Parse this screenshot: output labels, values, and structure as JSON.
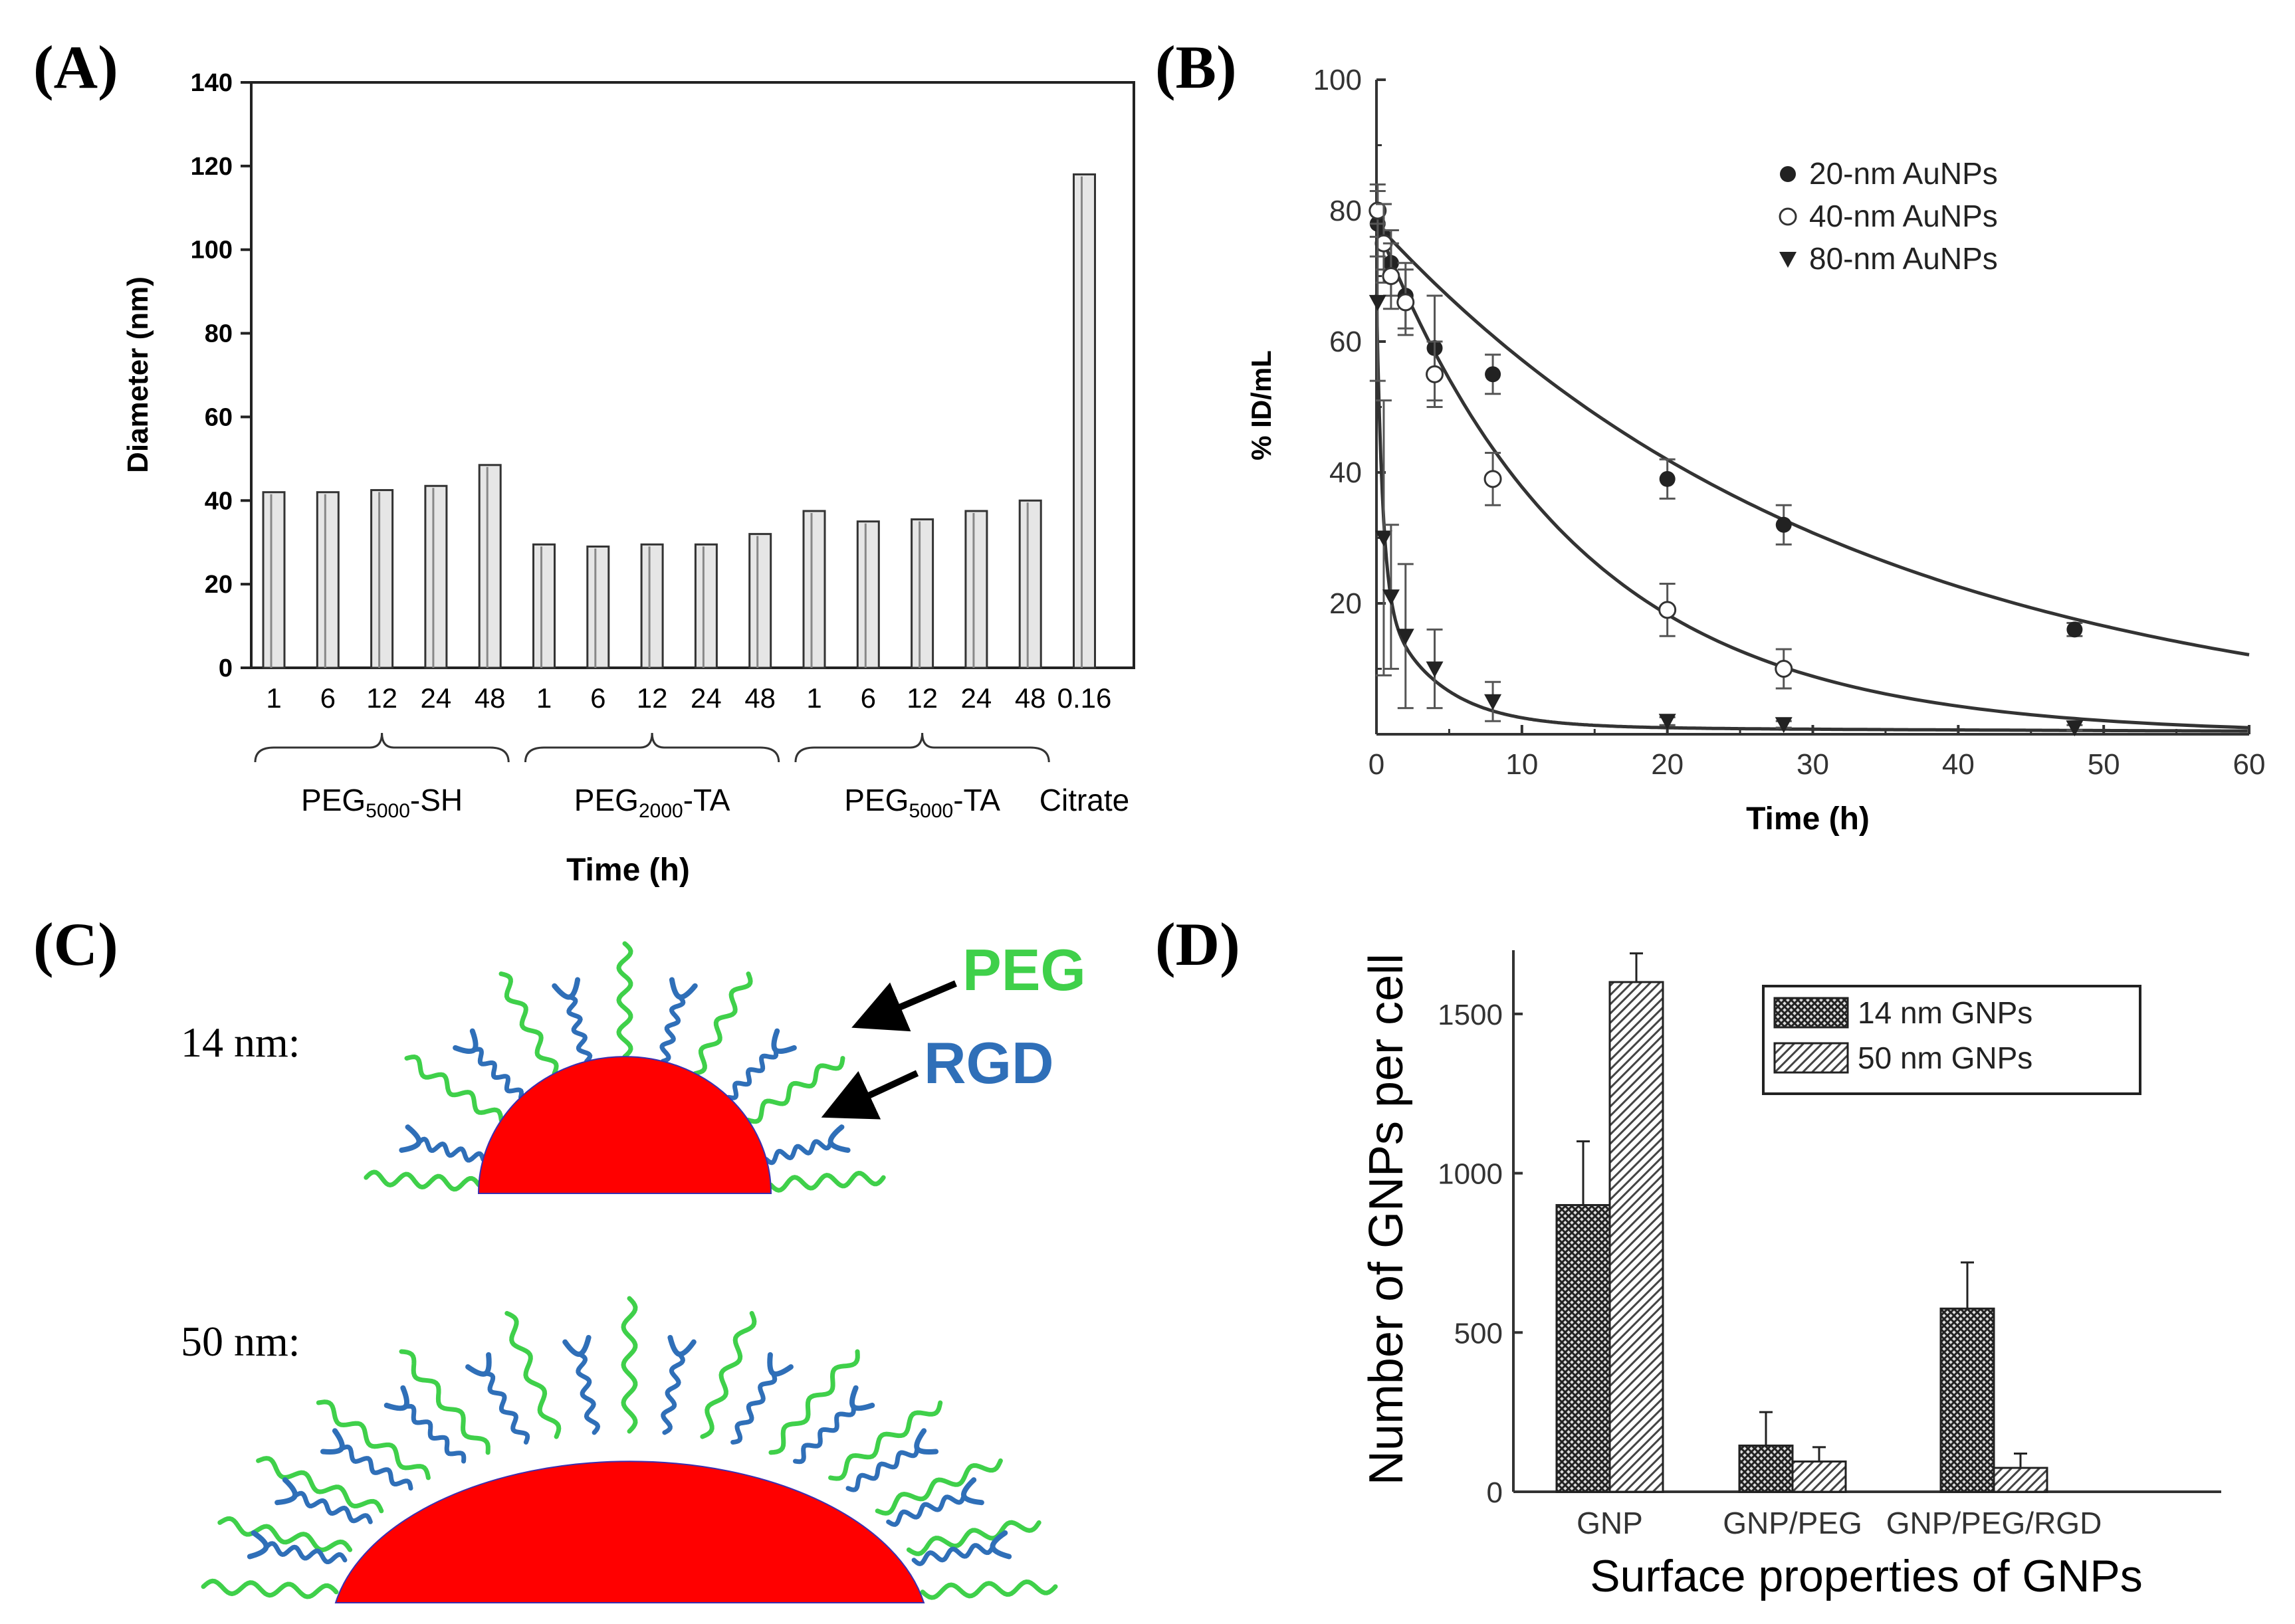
{
  "panel_labels": {
    "a": "(A)",
    "b": "(B)",
    "c": "(C)",
    "d": "(D)"
  },
  "colors": {
    "peg": "#3fd04a",
    "rgd": "#2f6fb8",
    "core": "#ff0000",
    "ink": "#222222"
  },
  "chart_data": [
    {
      "id": "A",
      "type": "bar",
      "ylabel": "Diameter (nm)",
      "xlabel": "Time (h)",
      "ylim": [
        0,
        140
      ],
      "yticks": [
        0,
        20,
        40,
        60,
        80,
        100,
        120,
        140
      ],
      "groups": [
        {
          "name": "PEG",
          "sub": "5000",
          "suffix": "-SH",
          "categories": [
            "1",
            "6",
            "12",
            "24",
            "48"
          ],
          "values": [
            42,
            42,
            42.5,
            43.5,
            48.5
          ]
        },
        {
          "name": "PEG",
          "sub": "2000",
          "suffix": "-TA",
          "categories": [
            "1",
            "6",
            "12",
            "24",
            "48"
          ],
          "values": [
            29.5,
            29,
            29.5,
            29.5,
            32
          ]
        },
        {
          "name": "PEG",
          "sub": "5000",
          "suffix": "-TA",
          "categories": [
            "1",
            "6",
            "12",
            "24",
            "48"
          ],
          "values": [
            37.5,
            35,
            35.5,
            37.5,
            40
          ]
        },
        {
          "name": "Citrate",
          "sub": "",
          "suffix": "",
          "categories": [
            "0.16"
          ],
          "values": [
            118
          ]
        }
      ]
    },
    {
      "id": "B",
      "type": "scatter",
      "xlabel": "Time (h)",
      "ylabel": "% ID/mL",
      "xlim": [
        0,
        60
      ],
      "ylim": [
        0,
        100
      ],
      "xticks": [
        0,
        10,
        20,
        30,
        40,
        50,
        60
      ],
      "yticks": [
        20,
        40,
        60,
        80,
        100
      ],
      "series": [
        {
          "name": "20-nm AuNPs",
          "marker": "filled-circle",
          "x": [
            0.083,
            0.5,
            1,
            2,
            4,
            8,
            20,
            28,
            48
          ],
          "y": [
            78,
            76,
            72,
            67,
            59,
            55,
            39,
            32,
            16
          ],
          "err": [
            5,
            5,
            5,
            5,
            8,
            3,
            3,
            3,
            1
          ],
          "fit": [
            78,
            0.031
          ]
        },
        {
          "name": "40-nm AuNPs",
          "marker": "open-circle",
          "x": [
            0.083,
            0.5,
            1,
            2,
            4,
            8,
            20,
            28
          ],
          "y": [
            80,
            75,
            70,
            66,
            55,
            39,
            19,
            10
          ],
          "err": [
            4,
            6,
            5,
            5,
            5,
            4,
            4,
            3
          ],
          "fit": [
            78,
            0.0725
          ]
        },
        {
          "name": "80-nm AuNPs",
          "marker": "filled-triangle-down",
          "x": [
            0.083,
            0.5,
            1,
            2,
            4,
            8,
            20,
            28,
            48
          ],
          "y": [
            66,
            30,
            21,
            15,
            10,
            5,
            2,
            1.5,
            1
          ],
          "err": [
            12,
            21,
            11,
            11,
            6,
            3,
            0.6,
            0.5,
            0.4
          ],
          "fit": [
            0,
            0
          ]
        }
      ]
    },
    {
      "id": "D",
      "type": "bar",
      "xlabel": "Surface properties of GNPs",
      "ylabel": "Number of GNPs per cell",
      "ylim": [
        0,
        1700
      ],
      "yticks": [
        0,
        500,
        1000,
        1500
      ],
      "categories": [
        "GNP",
        "GNP/PEG",
        "GNP/PEG/RGD"
      ],
      "series": [
        {
          "name": "14 nm GNPs",
          "values": [
            900,
            145,
            575
          ],
          "err": [
            200,
            105,
            145
          ]
        },
        {
          "name": "50 nm GNPs",
          "values": [
            1600,
            95,
            75
          ],
          "err": [
            90,
            45,
            45
          ]
        }
      ]
    }
  ],
  "diagram_c": {
    "rows": [
      {
        "size_label": "14 nm:"
      },
      {
        "size_label": "50 nm:"
      }
    ],
    "peg_label": "PEG",
    "rgd_label": "RGD"
  }
}
